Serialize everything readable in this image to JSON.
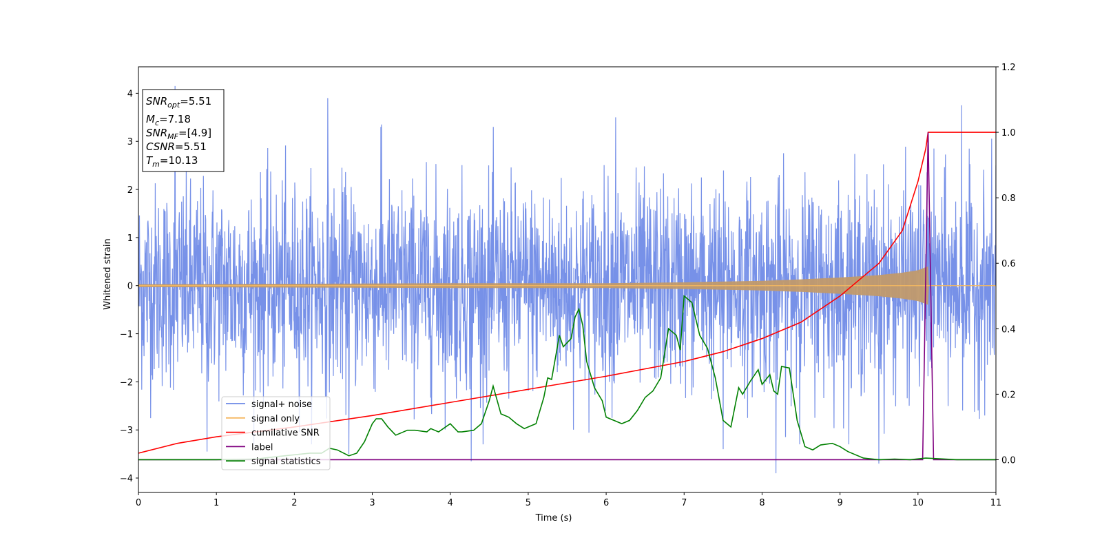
{
  "chart_data": {
    "type": "line",
    "xlabel": "Time (s)",
    "ylabel": "Whitened strain",
    "xlim": [
      0,
      11
    ],
    "ylim": [
      -4.3,
      4.55
    ],
    "y2lim": [
      -0.1,
      1.2
    ],
    "xticks": [
      "0",
      "1",
      "2",
      "3",
      "4",
      "5",
      "6",
      "7",
      "8",
      "9",
      "10",
      "11"
    ],
    "yticks": [
      "−4",
      "−3",
      "−2",
      "−1",
      "0",
      "1",
      "2",
      "3",
      "4"
    ],
    "y2ticks": [
      "0.0",
      "0.2",
      "0.4",
      "0.6",
      "0.8",
      "1.0",
      "1.2"
    ],
    "grid": false,
    "legend_position": "lower-left",
    "colors": {
      "signal_noise": "#6b88e6",
      "signal_only": "#f5b860",
      "cumulative_snr": "#ff0000",
      "label": "#800080",
      "signal_statistics": "#008000"
    },
    "legend": [
      {
        "label": "signal+ noise",
        "color": "#6b88e6"
      },
      {
        "label": "signal only",
        "color": "#f5b860"
      },
      {
        "label": "cumilative SNR",
        "color": "#ff0000"
      },
      {
        "label": "label",
        "color": "#800080"
      },
      {
        "label": "signal statistics",
        "color": "#008000"
      }
    ],
    "info_box": {
      "snr_opt": {
        "name": "SNR",
        "sub": "opt",
        "value": "=5.51"
      },
      "mc": {
        "name": "M",
        "sub": "c",
        "value": "=7.18"
      },
      "snr_mf": {
        "name": "SNR",
        "sub": "MF",
        "value": "=[4.9]"
      },
      "csnr": {
        "name": "CSNR",
        "value": "=5.51"
      },
      "tm": {
        "name": "T",
        "sub": "m",
        "value": "=10.13"
      }
    },
    "noise": {
      "sigma": 1.05,
      "outliers": [
        [
          0.47,
          4.15
        ],
        [
          2.43,
          3.9
        ],
        [
          3.12,
          3.35
        ],
        [
          6.12,
          3.5
        ],
        [
          10.56,
          3.75
        ],
        [
          8.18,
          -3.9
        ],
        [
          9.5,
          -3.7
        ],
        [
          4.27,
          -3.65
        ],
        [
          0.88,
          -3.45
        ],
        [
          7.5,
          -3.4
        ],
        [
          2.7,
          -3.5
        ],
        [
          11.0,
          2.5
        ]
      ]
    },
    "signal_envelope": {
      "x": [
        0,
        2,
        4,
        6,
        7,
        8,
        8.5,
        9,
        9.5,
        9.8,
        10.0,
        10.13,
        10.14,
        11
      ],
      "y": [
        0.03,
        0.04,
        0.05,
        0.05,
        0.07,
        0.1,
        0.13,
        0.17,
        0.22,
        0.27,
        0.32,
        0.4,
        0,
        0
      ]
    },
    "cumulative_snr": {
      "x": [
        0,
        0.5,
        1,
        2,
        3,
        4,
        5,
        6,
        7,
        7.5,
        8,
        8.5,
        9,
        9.5,
        9.8,
        10.0,
        10.1,
        10.13,
        11
      ],
      "y": [
        0.02,
        0.05,
        0.07,
        0.1,
        0.135,
        0.175,
        0.215,
        0.255,
        0.3,
        0.33,
        0.37,
        0.42,
        0.5,
        0.6,
        0.7,
        0.85,
        0.95,
        1.0,
        1.0
      ]
    },
    "label_series": {
      "x": [
        0,
        10.06,
        10.13,
        10.2,
        11
      ],
      "y": [
        0,
        0,
        1.0,
        0,
        0
      ]
    },
    "signal_statistics": {
      "x": [
        0,
        0.5,
        1,
        1.5,
        1.8,
        2,
        2.2,
        2.35,
        2.45,
        2.55,
        2.7,
        2.8,
        2.9,
        3.0,
        3.05,
        3.12,
        3.2,
        3.3,
        3.4,
        3.45,
        3.55,
        3.7,
        3.75,
        3.85,
        4.0,
        4.1,
        4.15,
        4.3,
        4.4,
        4.5,
        4.55,
        4.65,
        4.75,
        4.85,
        4.95,
        5.0,
        5.1,
        5.2,
        5.25,
        5.3,
        5.4,
        5.45,
        5.55,
        5.6,
        5.65,
        5.7,
        5.75,
        5.85,
        5.95,
        6.0,
        6.1,
        6.2,
        6.3,
        6.4,
        6.5,
        6.6,
        6.7,
        6.8,
        6.9,
        6.95,
        7.0,
        7.1,
        7.2,
        7.3,
        7.4,
        7.5,
        7.6,
        7.7,
        7.75,
        7.85,
        7.95,
        8.0,
        8.1,
        8.15,
        8.2,
        8.25,
        8.35,
        8.45,
        8.55,
        8.65,
        8.75,
        8.9,
        9.0,
        9.1,
        9.3,
        9.5,
        9.7,
        9.9,
        10.1,
        10.5,
        11
      ],
      "y": [
        0.0,
        0.0,
        0.0,
        0.002,
        0.01,
        0.015,
        0.02,
        0.02,
        0.035,
        0.03,
        0.012,
        0.02,
        0.055,
        0.11,
        0.125,
        0.125,
        0.1,
        0.075,
        0.085,
        0.09,
        0.09,
        0.085,
        0.095,
        0.085,
        0.11,
        0.085,
        0.085,
        0.09,
        0.11,
        0.18,
        0.225,
        0.14,
        0.13,
        0.11,
        0.095,
        0.1,
        0.11,
        0.19,
        0.25,
        0.245,
        0.38,
        0.345,
        0.37,
        0.435,
        0.46,
        0.41,
        0.3,
        0.22,
        0.18,
        0.13,
        0.12,
        0.11,
        0.12,
        0.15,
        0.19,
        0.21,
        0.25,
        0.4,
        0.38,
        0.335,
        0.5,
        0.48,
        0.38,
        0.34,
        0.25,
        0.12,
        0.1,
        0.22,
        0.2,
        0.24,
        0.275,
        0.23,
        0.26,
        0.21,
        0.2,
        0.285,
        0.28,
        0.12,
        0.04,
        0.03,
        0.045,
        0.05,
        0.04,
        0.025,
        0.005,
        0.0,
        0.002,
        0.0,
        0.005,
        0.0,
        0.0
      ]
    }
  }
}
